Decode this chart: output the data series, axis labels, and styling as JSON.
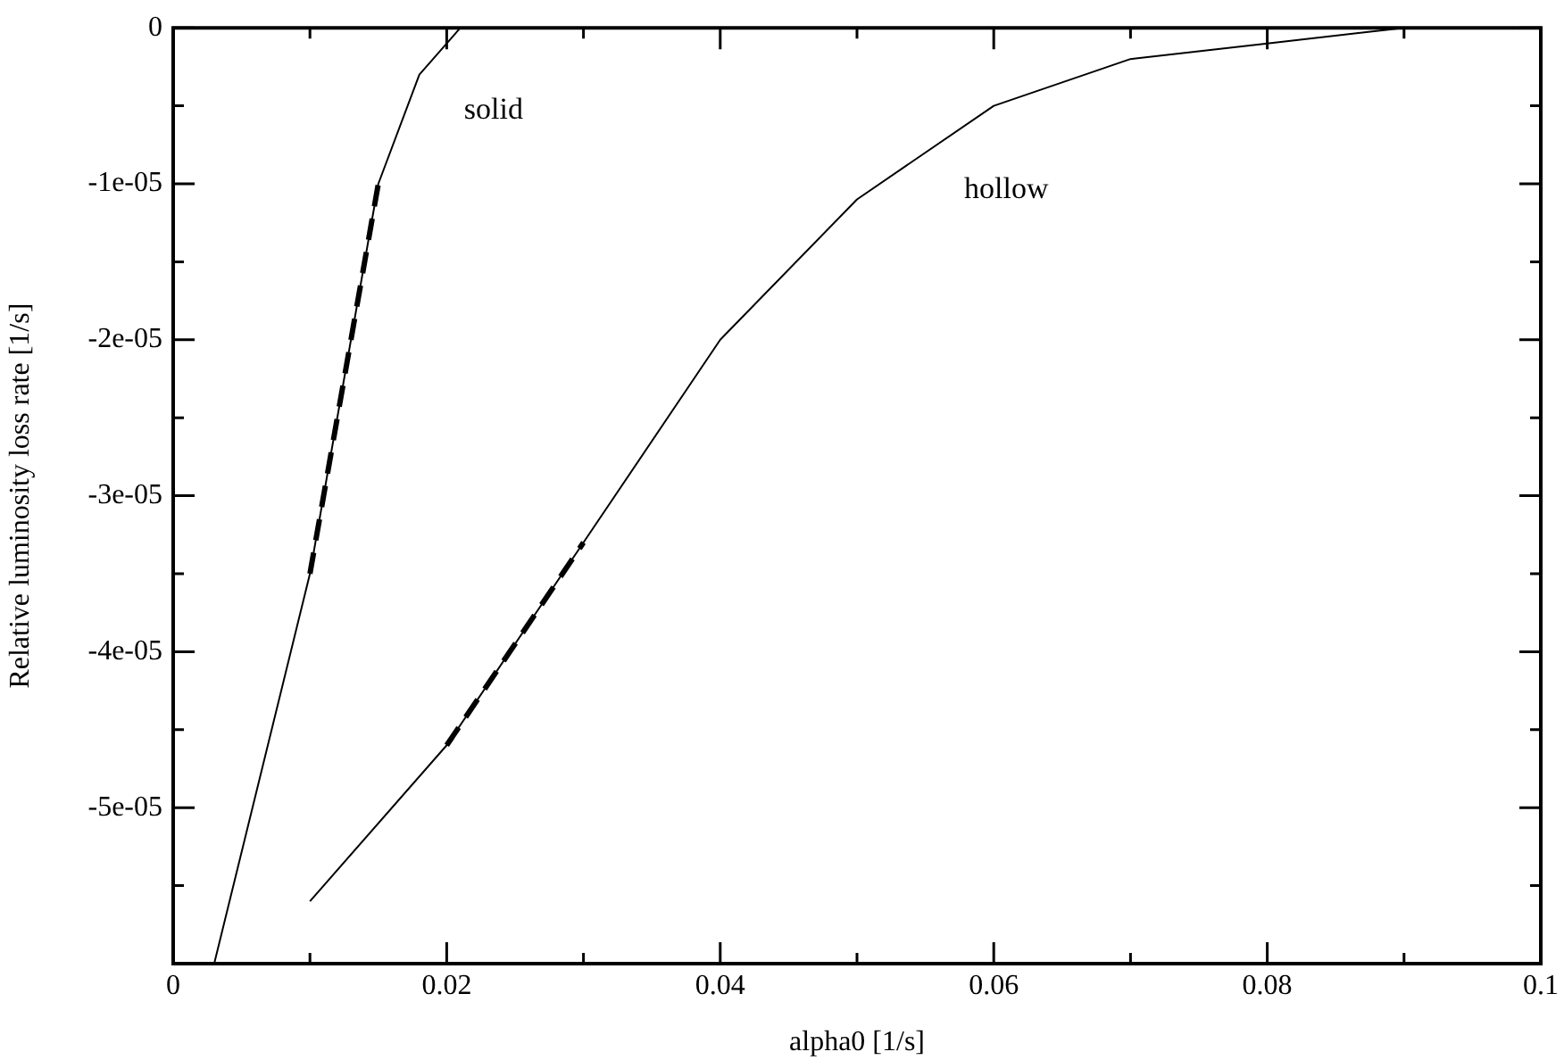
{
  "chart_data": {
    "type": "line",
    "xlabel": "alpha0 [1/s]",
    "ylabel": "Relative luminosity loss rate [1/s]",
    "marker": "none",
    "grid": false,
    "legend": false,
    "xlim": [
      0,
      0.1
    ],
    "ylim": [
      -6e-05,
      0
    ],
    "xticks": [
      0,
      {
        "value": 0.01,
        "label": null
      },
      0.02,
      {
        "value": 0.03,
        "label": null
      },
      0.04,
      {
        "value": 0.05,
        "label": null
      },
      0.06,
      {
        "value": 0.07,
        "label": null
      },
      0.08,
      {
        "value": 0.09,
        "label": null
      },
      0.1
    ],
    "yticks": [
      {
        "value": -5.5e-05,
        "label": null
      },
      {
        "value": -5e-05,
        "label": "-5e-05"
      },
      {
        "value": -4.5e-05,
        "label": null
      },
      {
        "value": -4e-05,
        "label": "-4e-05"
      },
      {
        "value": -3.5e-05,
        "label": null
      },
      {
        "value": -3e-05,
        "label": "-3e-05"
      },
      {
        "value": -2.5e-05,
        "label": null
      },
      {
        "value": -2e-05,
        "label": "-2e-05"
      },
      {
        "value": -1.5e-05,
        "label": null
      },
      {
        "value": -1e-05,
        "label": "-1e-05"
      },
      {
        "value": -5e-06,
        "label": null
      },
      0
    ],
    "series": [
      {
        "name": "solid",
        "color": "#000000",
        "line_style": "solid",
        "x": [
          0.003,
          0.01,
          0.015,
          0.018,
          0.021
        ],
        "values": [
          -6e-05,
          -3.5e-05,
          -1e-05,
          -3e-06,
          0
        ]
      },
      {
        "name": "hollow",
        "color": "#000000",
        "line_style": "solid",
        "x": [
          0.01,
          0.02,
          0.03,
          0.04,
          0.05,
          0.06,
          0.07,
          0.08,
          0.09,
          0.1
        ],
        "values": [
          -5.6e-05,
          -4.6e-05,
          -3.3e-05,
          -2e-05,
          -1.1e-05,
          -5e-06,
          -2e-06,
          -1e-06,
          0,
          0
        ]
      },
      {
        "color": "#000000",
        "line_style": "dashed",
        "x": [
          0.01,
          0.015
        ],
        "values": [
          -3.5e-05,
          -1e-05
        ]
      },
      {
        "color": "#000000",
        "line_style": "dashed",
        "x": [
          0.02,
          0.03
        ],
        "values": [
          -4.6e-05,
          -3.3e-05
        ]
      }
    ]
  }
}
